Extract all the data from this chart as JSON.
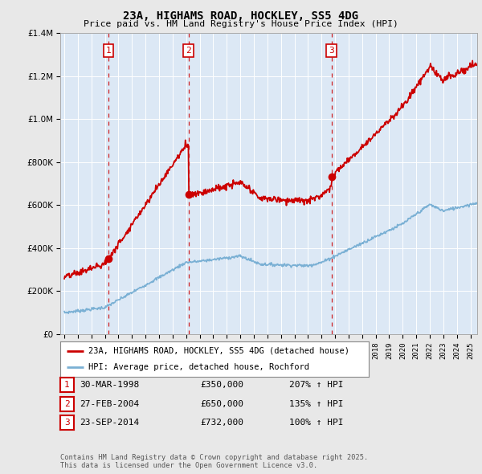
{
  "title": "23A, HIGHAMS ROAD, HOCKLEY, SS5 4DG",
  "subtitle": "Price paid vs. HM Land Registry's House Price Index (HPI)",
  "legend_line1": "23A, HIGHAMS ROAD, HOCKLEY, SS5 4DG (detached house)",
  "legend_line2": "HPI: Average price, detached house, Rochford",
  "transactions": [
    {
      "num": 1,
      "date": "30-MAR-1998",
      "price": 350000,
      "hpi": "207% ↑ HPI",
      "year": 1998.25
    },
    {
      "num": 2,
      "date": "27-FEB-2004",
      "price": 650000,
      "hpi": "135% ↑ HPI",
      "year": 2004.17
    },
    {
      "num": 3,
      "date": "23-SEP-2014",
      "price": 732000,
      "hpi": "100% ↑ HPI",
      "year": 2014.73
    }
  ],
  "footnote": "Contains HM Land Registry data © Crown copyright and database right 2025.\nThis data is licensed under the Open Government Licence v3.0.",
  "hpi_color": "#7ab0d4",
  "price_color": "#cc0000",
  "marker_color": "#cc0000",
  "vline_color": "#cc0000",
  "background_color": "#e8e8e8",
  "plot_bg": "#dce8f5",
  "ylim": [
    0,
    1400000
  ],
  "xlim_start": 1994.7,
  "xlim_end": 2025.5
}
